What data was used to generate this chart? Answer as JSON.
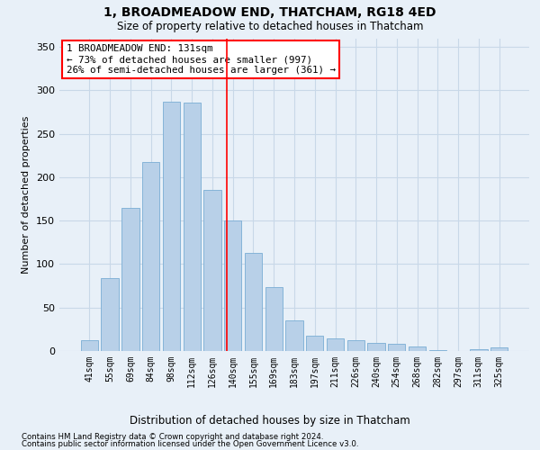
{
  "title": "1, BROADMEADOW END, THATCHAM, RG18 4ED",
  "subtitle": "Size of property relative to detached houses in Thatcham",
  "xlabel_bottom": "Distribution of detached houses by size in Thatcham",
  "ylabel": "Number of detached properties",
  "categories": [
    "41sqm",
    "55sqm",
    "69sqm",
    "84sqm",
    "98sqm",
    "112sqm",
    "126sqm",
    "140sqm",
    "155sqm",
    "169sqm",
    "183sqm",
    "197sqm",
    "211sqm",
    "226sqm",
    "240sqm",
    "254sqm",
    "268sqm",
    "282sqm",
    "297sqm",
    "311sqm",
    "325sqm"
  ],
  "values": [
    12,
    84,
    165,
    218,
    287,
    286,
    185,
    150,
    113,
    74,
    35,
    18,
    14,
    12,
    9,
    8,
    5,
    1,
    0,
    2,
    4
  ],
  "bar_color": "#b8d0e8",
  "bar_edge_color": "#7aadd4",
  "grid_color": "#c8d8e8",
  "background_color": "#e8f0f8",
  "vline_x": 6.72,
  "vline_color": "red",
  "annotation_text": "1 BROADMEADOW END: 131sqm\n← 73% of detached houses are smaller (997)\n26% of semi-detached houses are larger (361) →",
  "annotation_box_color": "white",
  "annotation_box_edge_color": "red",
  "ylim": [
    0,
    360
  ],
  "yticks": [
    0,
    50,
    100,
    150,
    200,
    250,
    300,
    350
  ],
  "footnote1": "Contains HM Land Registry data © Crown copyright and database right 2024.",
  "footnote2": "Contains public sector information licensed under the Open Government Licence v3.0."
}
